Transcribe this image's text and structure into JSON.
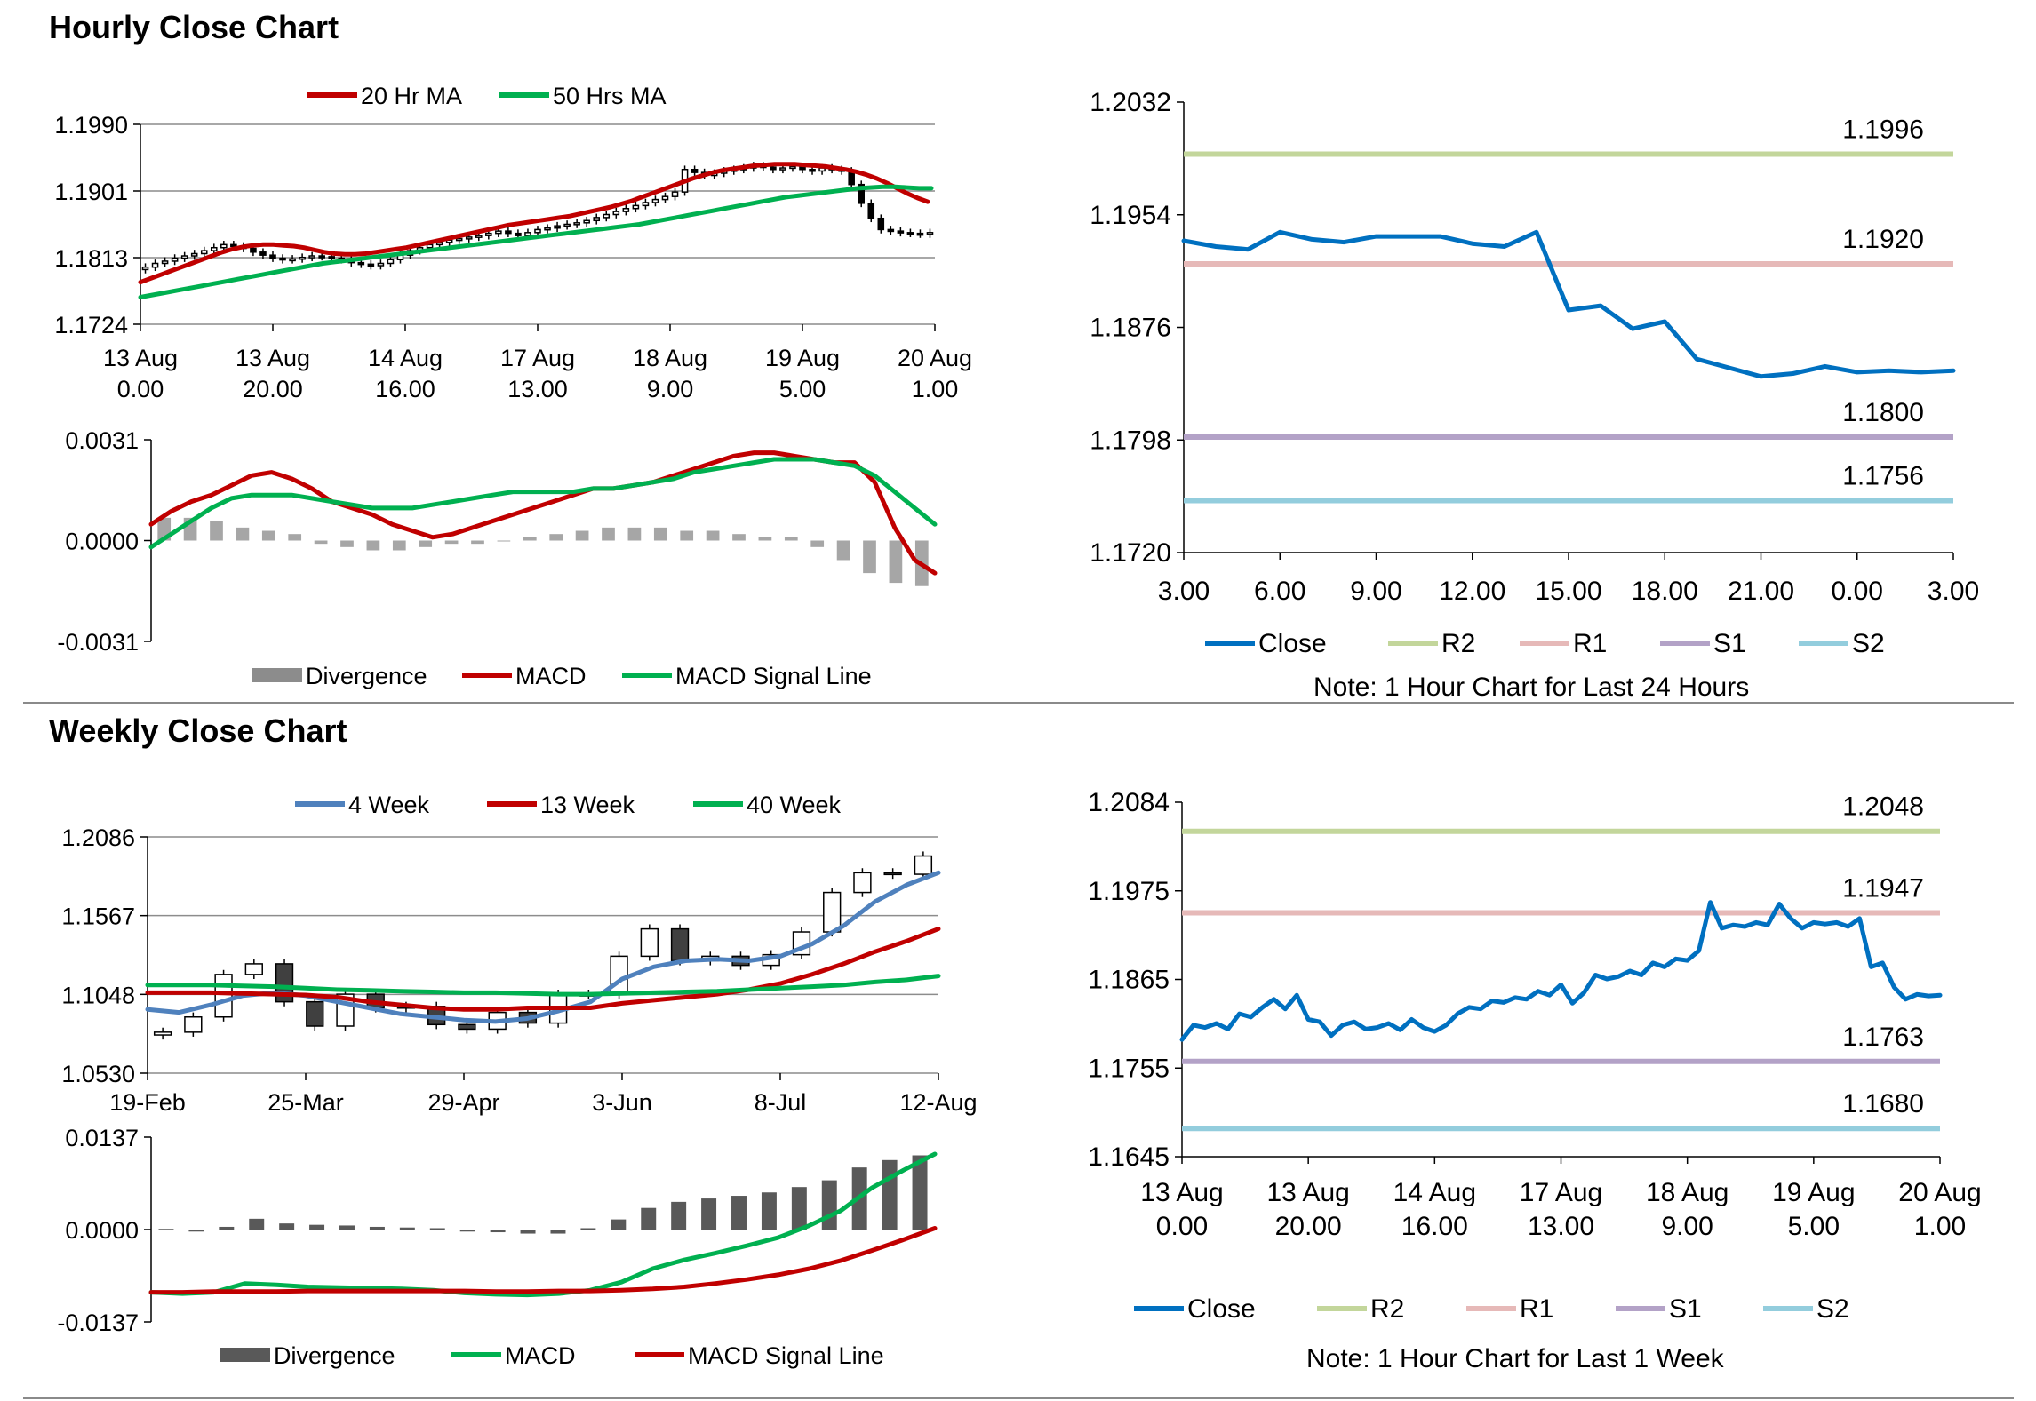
{
  "sections": {
    "hourly": {
      "title": "Hourly Close Chart"
    },
    "weekly": {
      "title": "Weekly Close Chart"
    }
  },
  "colors": {
    "red": "#c00000",
    "green": "#00b050",
    "blue_ma": "#4f81bd",
    "close": "#0070c0",
    "r2": "#c3d69b",
    "r1": "#e6b9b8",
    "s1": "#b3a2c7",
    "s2": "#93cddd",
    "hist_light": "#a6a6a6",
    "hist_dark": "#595959"
  },
  "chart_data": [
    {
      "id": "hourly_candles",
      "type": "candlestick",
      "title": "",
      "xlabel": "",
      "ylabel": "",
      "ylim": [
        1.1724,
        1.199
      ],
      "yticks": [
        "1.1990",
        "1.1901",
        "1.1813",
        "1.1724"
      ],
      "xticks": [
        {
          "line1": "13 Aug",
          "line2": "0.00"
        },
        {
          "line1": "13 Aug",
          "line2": "20.00"
        },
        {
          "line1": "14 Aug",
          "line2": "16.00"
        },
        {
          "line1": "17 Aug",
          "line2": "13.00"
        },
        {
          "line1": "18 Aug",
          "line2": "9.00"
        },
        {
          "line1": "19 Aug",
          "line2": "5.00"
        },
        {
          "line1": "20 Aug",
          "line2": "1.00"
        }
      ],
      "legend": [
        "20 Hr MA",
        "50 Hrs MA"
      ],
      "legend_position": "top",
      "grid": true,
      "close": [
        1.18,
        1.1805,
        1.1808,
        1.1812,
        1.1815,
        1.1818,
        1.1822,
        1.1826,
        1.183,
        1.1828,
        1.1825,
        1.182,
        1.1816,
        1.1812,
        1.181,
        1.1811,
        1.1813,
        1.1815,
        1.1814,
        1.1812,
        1.181,
        1.1806,
        1.1804,
        1.1802,
        1.1805,
        1.181,
        1.1816,
        1.1822,
        1.1826,
        1.183,
        1.1833,
        1.1836,
        1.1838,
        1.184,
        1.1842,
        1.1845,
        1.1848,
        1.1845,
        1.1842,
        1.1846,
        1.185,
        1.1852,
        1.1855,
        1.1857,
        1.1859,
        1.1862,
        1.1866,
        1.187,
        1.1874,
        1.1878,
        1.1882,
        1.1886,
        1.189,
        1.1894,
        1.19,
        1.193,
        1.1926,
        1.1922,
        1.1925,
        1.1928,
        1.193,
        1.1932,
        1.1935,
        1.1933,
        1.193,
        1.1932,
        1.1934,
        1.193,
        1.1928,
        1.1932,
        1.193,
        1.1928,
        1.191,
        1.1885,
        1.1865,
        1.185,
        1.1848,
        1.1846,
        1.1845,
        1.1844,
        1.1846
      ],
      "ma20": [
        1.178,
        1.1785,
        1.179,
        1.1795,
        1.18,
        1.1805,
        1.181,
        1.1815,
        1.182,
        1.1824,
        1.1827,
        1.1829,
        1.183,
        1.183,
        1.1829,
        1.1828,
        1.1826,
        1.1823,
        1.182,
        1.1818,
        1.1817,
        1.1817,
        1.1818,
        1.182,
        1.1822,
        1.1824,
        1.1826,
        1.1829,
        1.1832,
        1.1835,
        1.1838,
        1.1841,
        1.1844,
        1.1847,
        1.185,
        1.1853,
        1.1856,
        1.1858,
        1.186,
        1.1862,
        1.1864,
        1.1866,
        1.1868,
        1.1871,
        1.1874,
        1.1877,
        1.188,
        1.1884,
        1.1888,
        1.1893,
        1.1898,
        1.1903,
        1.1908,
        1.1913,
        1.1918,
        1.1922,
        1.1926,
        1.1929,
        1.1931,
        1.1933,
        1.1935,
        1.1936,
        1.1937,
        1.1937,
        1.1937,
        1.1936,
        1.1935,
        1.1934,
        1.1932,
        1.193,
        1.1927,
        1.1923,
        1.1918,
        1.1912,
        1.1905,
        1.1898,
        1.1892,
        1.1887
      ],
      "ma50": [
        1.176,
        1.1763,
        1.1766,
        1.1769,
        1.1772,
        1.1775,
        1.1778,
        1.1781,
        1.1784,
        1.1787,
        1.179,
        1.1793,
        1.1796,
        1.1799,
        1.1802,
        1.1805,
        1.1807,
        1.1809,
        1.1811,
        1.1813,
        1.1815,
        1.1817,
        1.1819,
        1.1821,
        1.1823,
        1.1825,
        1.1827,
        1.1829,
        1.1831,
        1.1833,
        1.1835,
        1.1837,
        1.1839,
        1.1841,
        1.1843,
        1.1845,
        1.1847,
        1.1849,
        1.1851,
        1.1853,
        1.1855,
        1.1857,
        1.186,
        1.1863,
        1.1866,
        1.1869,
        1.1872,
        1.1875,
        1.1878,
        1.1881,
        1.1884,
        1.1887,
        1.189,
        1.1893,
        1.1895,
        1.1897,
        1.1899,
        1.1901,
        1.1903,
        1.1905,
        1.1906,
        1.1907,
        1.1907,
        1.1906,
        1.1905,
        1.1905
      ]
    },
    {
      "id": "hourly_macd",
      "type": "bar",
      "ylim": [
        -0.0031,
        0.0031
      ],
      "yticks": [
        "0.0031",
        "0.0000",
        "-0.0031"
      ],
      "legend": [
        "Divergence",
        "MACD",
        "MACD Signal Line"
      ],
      "legend_position": "bottom",
      "macd": [
        0.0005,
        0.0009,
        0.0012,
        0.0014,
        0.0017,
        0.002,
        0.0021,
        0.0019,
        0.0016,
        0.0012,
        0.001,
        0.0008,
        0.0005,
        0.0003,
        0.0001,
        0.0002,
        0.0004,
        0.0006,
        0.0008,
        0.001,
        0.0012,
        0.0014,
        0.0016,
        0.0016,
        0.0017,
        0.0018,
        0.002,
        0.0022,
        0.0024,
        0.0026,
        0.0027,
        0.0027,
        0.0026,
        0.0025,
        0.0024,
        0.0024,
        0.0018,
        0.0004,
        -0.0006,
        -0.001
      ],
      "signal": [
        -0.0002,
        0.0002,
        0.0006,
        0.001,
        0.0013,
        0.0014,
        0.0014,
        0.0014,
        0.0013,
        0.0012,
        0.0011,
        0.001,
        0.001,
        0.001,
        0.0011,
        0.0012,
        0.0013,
        0.0014,
        0.0015,
        0.0015,
        0.0015,
        0.0015,
        0.0016,
        0.0016,
        0.0017,
        0.0018,
        0.0019,
        0.0021,
        0.0022,
        0.0023,
        0.0024,
        0.0025,
        0.0025,
        0.0025,
        0.0024,
        0.0023,
        0.002,
        0.0015,
        0.001,
        0.0005
      ],
      "divergence": [
        0.0007,
        0.0007,
        0.0006,
        0.0004,
        0.0003,
        0.0002,
        -0.0001,
        -0.0002,
        -0.0003,
        -0.0003,
        -0.0002,
        -0.0001,
        -0.0001,
        0.0,
        0.0001,
        0.0002,
        0.0003,
        0.0004,
        0.0004,
        0.0004,
        0.0003,
        0.0003,
        0.0002,
        0.0001,
        0.0001,
        -0.0002,
        -0.0006,
        -0.001,
        -0.0013,
        -0.0014
      ]
    },
    {
      "id": "hourly_levels",
      "type": "line",
      "ylim": [
        1.172,
        1.2032
      ],
      "yticks": [
        "1.2032",
        "1.1954",
        "1.1876",
        "1.1798",
        "1.1720"
      ],
      "xticks": [
        "3.00",
        "6.00",
        "9.00",
        "12.00",
        "15.00",
        "18.00",
        "21.00",
        "0.00",
        "3.00"
      ],
      "legend": [
        "Close",
        "R2",
        "R1",
        "S1",
        "S2"
      ],
      "legend_position": "bottom",
      "levels": {
        "R2": 1.1996,
        "R1": 1.192,
        "S1": 1.18,
        "S2": 1.1756
      },
      "level_labels": {
        "R2": "1.1996",
        "R1": "1.1920",
        "S1": "1.1800",
        "S2": "1.1756"
      },
      "close": [
        1.1936,
        1.1932,
        1.193,
        1.1942,
        1.1937,
        1.1935,
        1.1939,
        1.1939,
        1.1939,
        1.1934,
        1.1932,
        1.1942,
        1.1888,
        1.1891,
        1.1875,
        1.188,
        1.1854,
        1.1848,
        1.1842,
        1.1844,
        1.1849,
        1.1845,
        1.1846,
        1.1845,
        1.1846
      ],
      "note": "Note: 1 Hour Chart for Last 24 Hours"
    },
    {
      "id": "weekly_candles",
      "type": "candlestick",
      "ylim": [
        1.053,
        1.2086
      ],
      "yticks": [
        "1.2086",
        "1.1567",
        "1.1048",
        "1.0530"
      ],
      "xticks": [
        "19-Feb",
        "25-Mar",
        "29-Apr",
        "3-Jun",
        "8-Jul",
        "12-Aug"
      ],
      "legend": [
        "4 Week",
        "13 Week",
        "40 Week"
      ],
      "legend_position": "top",
      "close": [
        1.08,
        1.09,
        1.118,
        1.125,
        1.1,
        1.084,
        1.105,
        1.096,
        1.097,
        1.085,
        1.082,
        1.093,
        1.086,
        1.105,
        1.105,
        1.13,
        1.148,
        1.127,
        1.13,
        1.124,
        1.131,
        1.146,
        1.172,
        1.185,
        1.184,
        1.196
      ],
      "ma4": [
        1.095,
        1.093,
        1.098,
        1.104,
        1.106,
        1.104,
        1.1,
        1.096,
        1.092,
        1.09,
        1.088,
        1.087,
        1.089,
        1.094,
        1.1,
        1.115,
        1.123,
        1.127,
        1.128,
        1.127,
        1.13,
        1.138,
        1.15,
        1.166,
        1.177,
        1.185
      ],
      "ma13": [
        1.106,
        1.106,
        1.106,
        1.1055,
        1.105,
        1.1045,
        1.103,
        1.1,
        1.098,
        1.096,
        1.095,
        1.095,
        1.096,
        1.096,
        1.096,
        1.099,
        1.101,
        1.103,
        1.105,
        1.108,
        1.112,
        1.118,
        1.125,
        1.133,
        1.14,
        1.148
      ],
      "ma40": [
        1.111,
        1.111,
        1.111,
        1.1105,
        1.11,
        1.109,
        1.108,
        1.1075,
        1.107,
        1.1065,
        1.106,
        1.106,
        1.1055,
        1.105,
        1.105,
        1.1055,
        1.106,
        1.1065,
        1.107,
        1.108,
        1.109,
        1.11,
        1.111,
        1.113,
        1.1145,
        1.117
      ]
    },
    {
      "id": "weekly_macd",
      "type": "bar",
      "ylim": [
        -0.0137,
        0.0137
      ],
      "yticks": [
        "0.0137",
        "0.0000",
        "-0.0137"
      ],
      "legend": [
        "Divergence",
        "MACD",
        "MACD Signal Line"
      ],
      "legend_position": "bottom",
      "divergence": [
        0.0001,
        -0.0003,
        0.0004,
        0.0016,
        0.0009,
        0.0007,
        0.0006,
        0.0004,
        0.0003,
        0.0002,
        -0.0003,
        -0.0004,
        -0.0006,
        -0.0006,
        0.0002,
        0.0015,
        0.0032,
        0.0041,
        0.0046,
        0.005,
        0.0055,
        0.0063,
        0.0073,
        0.0092,
        0.0103,
        0.011
      ],
      "macd": [
        -0.0093,
        -0.0095,
        -0.0093,
        -0.008,
        -0.0082,
        -0.0085,
        -0.0086,
        -0.0087,
        -0.0088,
        -0.009,
        -0.0094,
        -0.0096,
        -0.0097,
        -0.0095,
        -0.009,
        -0.0078,
        -0.0058,
        -0.0045,
        -0.0035,
        -0.0024,
        -0.0012,
        0.0006,
        0.0028,
        0.0062,
        0.0088,
        0.0112
      ],
      "signal": [
        -0.0093,
        -0.0093,
        -0.0092,
        -0.0092,
        -0.0092,
        -0.0091,
        -0.0091,
        -0.0091,
        -0.0091,
        -0.0091,
        -0.0091,
        -0.0092,
        -0.0092,
        -0.0091,
        -0.0091,
        -0.009,
        -0.0088,
        -0.0085,
        -0.008,
        -0.0074,
        -0.0067,
        -0.0058,
        -0.0046,
        -0.0031,
        -0.0015,
        0.0002
      ]
    },
    {
      "id": "weekly_levels",
      "type": "line",
      "ylim": [
        1.1645,
        1.2084
      ],
      "yticks": [
        "1.2084",
        "1.1975",
        "1.1865",
        "1.1755",
        "1.1645"
      ],
      "xticks": [
        {
          "line1": "13 Aug",
          "line2": "0.00"
        },
        {
          "line1": "13 Aug",
          "line2": "20.00"
        },
        {
          "line1": "14 Aug",
          "line2": "16.00"
        },
        {
          "line1": "17 Aug",
          "line2": "13.00"
        },
        {
          "line1": "18 Aug",
          "line2": "9.00"
        },
        {
          "line1": "19 Aug",
          "line2": "5.00"
        },
        {
          "line1": "20 Aug",
          "line2": "1.00"
        }
      ],
      "legend": [
        "Close",
        "R2",
        "R1",
        "S1",
        "S2"
      ],
      "legend_position": "bottom",
      "levels": {
        "R2": 1.2048,
        "R1": 1.1947,
        "S1": 1.1763,
        "S2": 1.168
      },
      "level_labels": {
        "R2": "1.2048",
        "R1": "1.1947",
        "S1": "1.1763",
        "S2": "1.1680"
      },
      "close": [
        1.179,
        1.1808,
        1.1805,
        1.181,
        1.1803,
        1.1822,
        1.1818,
        1.183,
        1.184,
        1.1828,
        1.1845,
        1.1815,
        1.1812,
        1.1795,
        1.1808,
        1.1812,
        1.1803,
        1.1805,
        1.181,
        1.1802,
        1.1815,
        1.1805,
        1.18,
        1.1808,
        1.1822,
        1.183,
        1.1828,
        1.1838,
        1.1836,
        1.1842,
        1.184,
        1.185,
        1.1845,
        1.1858,
        1.1835,
        1.1848,
        1.187,
        1.1865,
        1.1868,
        1.1875,
        1.187,
        1.1885,
        1.188,
        1.189,
        1.1888,
        1.19,
        1.196,
        1.1928,
        1.1932,
        1.193,
        1.1935,
        1.1932,
        1.1958,
        1.194,
        1.1928,
        1.1935,
        1.1933,
        1.1935,
        1.193,
        1.194,
        1.188,
        1.1885,
        1.1855,
        1.184,
        1.1846,
        1.1844,
        1.1845
      ],
      "note": "Note: 1 Hour Chart for Last 1 Week"
    }
  ]
}
